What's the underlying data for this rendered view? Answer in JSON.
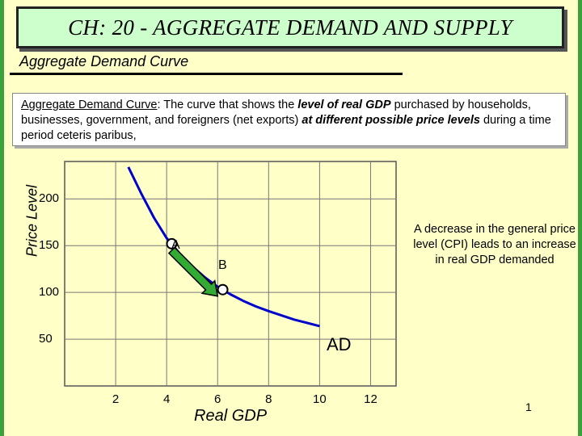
{
  "title": "CH: 20 - AGGREGATE DEMAND AND SUPPLY",
  "subtitle": "Aggregate Demand Curve",
  "definition": {
    "term": "Aggregate Demand Curve",
    "part1": ": The curve that shows the ",
    "emph1": "level of real GDP",
    "part2": " purchased  by households, businesses, government, and foreigners (net exports) ",
    "emph2": "at different possible price levels",
    "part3": " during a time period ceteris paribus,"
  },
  "note": "A decrease in the general price level (CPI) leads to an increase in real GDP demanded",
  "page_number": "1",
  "colors": {
    "background": "#ffffc8",
    "title_box": "#ccffcc",
    "curve": "#0000cc",
    "arrow": "#33aa33"
  },
  "chart_data": {
    "type": "line",
    "xlabel": "Real GDP",
    "ylabel": "Price Level",
    "x_ticks": [
      "2",
      "4",
      "6",
      "8",
      "10",
      "12"
    ],
    "y_ticks": [
      "200",
      "150",
      "100",
      "50"
    ],
    "xlim": [
      0,
      13
    ],
    "ylim": [
      0,
      240
    ],
    "grid": true,
    "series": [
      {
        "name": "AD",
        "x": [
          2.5,
          3.0,
          3.5,
          4.0,
          4.5,
          5.0,
          5.5,
          6.0,
          6.5,
          7.0,
          7.5,
          8.0,
          9.0,
          10.0
        ],
        "y": [
          234,
          206,
          180,
          158,
          142,
          128,
          116,
          106,
          98,
          91,
          85,
          80,
          71,
          64
        ]
      }
    ],
    "points": [
      {
        "label": "A",
        "x": 4.2,
        "y": 152
      },
      {
        "label": "B",
        "x": 6.2,
        "y": 103
      }
    ],
    "arrow": {
      "from": {
        "x": 4.2,
        "y": 145
      },
      "to": {
        "x": 6.0,
        "y": 96
      }
    }
  }
}
